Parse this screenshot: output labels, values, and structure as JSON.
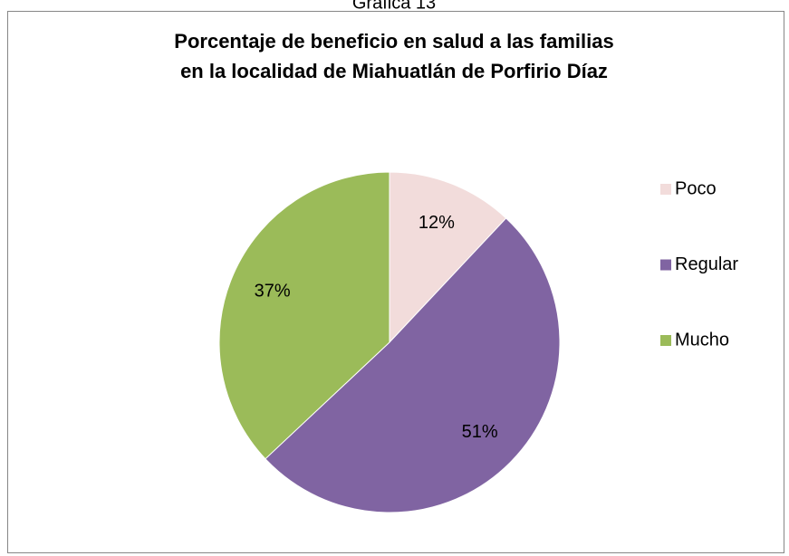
{
  "caption": "Gráfica 13",
  "chart_data": {
    "type": "pie",
    "title": [
      "Porcentaje de beneficio en salud a las familias",
      "en la localidad de Miahuatlán de Porfirio Díaz"
    ],
    "categories": [
      "Poco",
      "Regular",
      "Mucho"
    ],
    "values": [
      12,
      51,
      37
    ],
    "value_labels": [
      "12%",
      "51%",
      "37%"
    ],
    "colors": [
      "#f2dcdb",
      "#8064a2",
      "#9bbb59"
    ],
    "legend": "right"
  }
}
